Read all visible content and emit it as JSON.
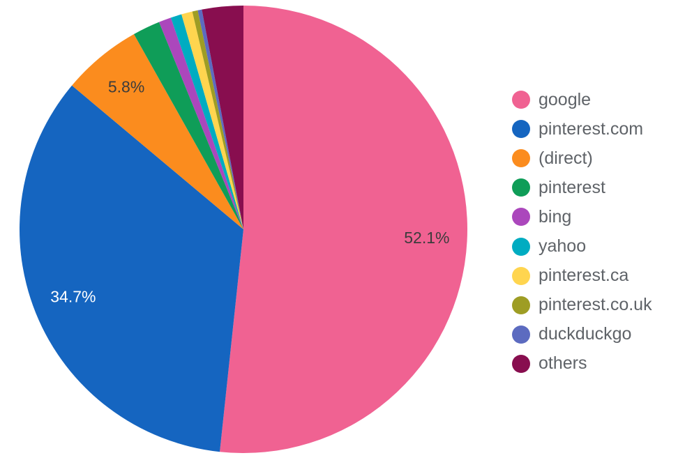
{
  "chart_data": {
    "type": "pie",
    "title": "",
    "legend_position": "right",
    "labels": [
      "google",
      "pinterest.com",
      "(direct)",
      "pinterest",
      "bing",
      "yahoo",
      "pinterest.ca",
      "pinterest.co.uk",
      "duckduckgo",
      "others"
    ],
    "values": [
      52.1,
      34.7,
      5.8,
      2.0,
      0.9,
      0.8,
      0.8,
      0.4,
      0.3,
      3.0
    ],
    "data_labels": [
      "52.1%",
      "34.7%",
      "5.8%",
      "",
      "",
      "",
      "",
      "",
      "",
      ""
    ],
    "colors": [
      "#f06292",
      "#1565c0",
      "#fb8c1e",
      "#0f9d58",
      "#ab47bc",
      "#00acc1",
      "#ffd54f",
      "#9e9d24",
      "#5c6bc0",
      "#880e4f"
    ],
    "label_colors": [
      "#3c3c3c",
      "#ffffff",
      "#3c3c3c",
      "",
      "",
      "",
      "",
      "",
      "",
      ""
    ]
  }
}
